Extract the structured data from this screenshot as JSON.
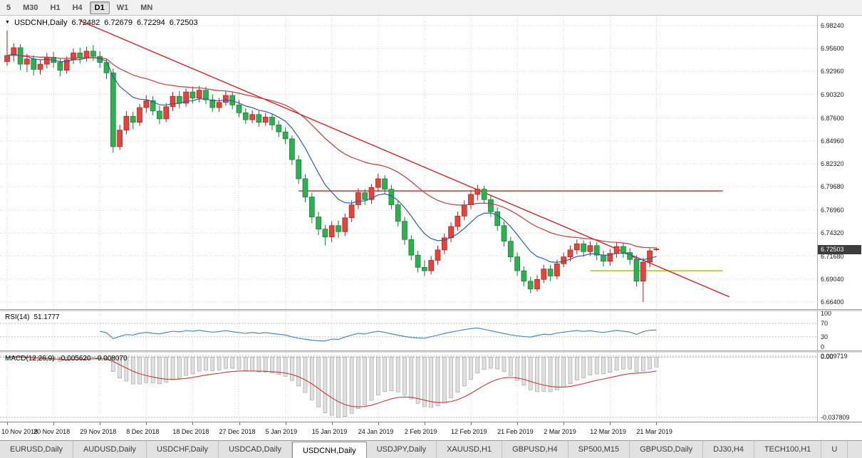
{
  "toolbar": {
    "periods": [
      {
        "label": "5",
        "active": false
      },
      {
        "label": "M30",
        "active": false
      },
      {
        "label": "H1",
        "active": false
      },
      {
        "label": "H4",
        "active": false
      },
      {
        "label": "D1",
        "active": true
      },
      {
        "label": "W1",
        "active": false
      },
      {
        "label": "MN",
        "active": false
      }
    ]
  },
  "main_chart": {
    "symbol_period": "USDCNH,Daily",
    "open": "6.72482",
    "high": "6.72679",
    "low": "6.72294",
    "close": "6.72503",
    "current_price": "6.72503",
    "price_axis_labels": [
      "6.98240",
      "6.95600",
      "6.92960",
      "6.90320",
      "6.87600",
      "6.84960",
      "6.82320",
      "6.79680",
      "6.76960",
      "6.74320",
      "6.71680",
      "6.69040",
      "6.66400"
    ]
  },
  "rsi_panel": {
    "name": "RSI(14)",
    "value": "51.1777",
    "axis_labels": [
      "100",
      "70",
      "30",
      "0"
    ],
    "levels": [
      70,
      30
    ],
    "range": [
      0,
      100
    ]
  },
  "macd_panel": {
    "name": "MACD(12,26,9)",
    "macd_value": "-0.005620",
    "signal_value": "-0.008070",
    "axis_labels": [
      "0.009719",
      "0.00",
      "-0.037809"
    ]
  },
  "date_axis": {
    "labels": [
      "10 Nov 2018",
      "20 Nov 2018",
      "29 Nov 2018",
      "8 Dec 2018",
      "18 Dec 2018",
      "27 Dec 2018",
      "5 Jan 2019",
      "15 Jan 2019",
      "24 Jan 2019",
      "2 Feb 2019",
      "12 Feb 2019",
      "21 Feb 2019",
      "2 Mar 2019",
      "12 Mar 2019",
      "21 Mar 2019"
    ],
    "tick_every": 7
  },
  "tabs": [
    {
      "label": "EURUSD,Daily",
      "active": false
    },
    {
      "label": "AUDUSD,Daily",
      "active": false
    },
    {
      "label": "USDCHF,Daily",
      "active": false
    },
    {
      "label": "USDCAD,Daily",
      "active": false
    },
    {
      "label": "USDCNH,Daily",
      "active": true
    },
    {
      "label": "USDJPY,Daily",
      "active": false
    },
    {
      "label": "XAUUSD,H1",
      "active": false
    },
    {
      "label": "GBPUSD,H4",
      "active": false
    },
    {
      "label": "SP500,M15",
      "active": false
    },
    {
      "label": "GBPUSD,Daily",
      "active": false
    },
    {
      "label": "DJ30,H4",
      "active": false
    },
    {
      "label": "TECH100,H1",
      "active": false
    },
    {
      "label": "U",
      "active": false
    }
  ],
  "colors": {
    "bull": "#e2443e",
    "bull_border": "#a8201c",
    "bear": "#2fae52",
    "bear_border": "#157a33",
    "ma_fast": "#2e5e9e",
    "ma_slow": "#c23b3b",
    "trendline": "#cc2222",
    "resistance_line": "#cc2222",
    "support_line": "#aacc00",
    "grid": "#d9d9d9",
    "rsi_line": "#3c7fb5",
    "macd_histogram": "#e0e0e0",
    "macd_histogram_border": "#9a9a9a",
    "macd_signal": "#c23b3b",
    "price_tag_bg": "#3d3d3d"
  },
  "chart_data": {
    "type": "candlestick",
    "symbol": "USDCNH",
    "timeframe": "Daily",
    "y_range": [
      6.664,
      6.9824
    ],
    "candles": [
      [
        6.941,
        6.977,
        6.936,
        6.948
      ],
      [
        6.948,
        6.962,
        6.941,
        6.957
      ],
      [
        6.957,
        6.961,
        6.931,
        6.938
      ],
      [
        6.938,
        6.95,
        6.929,
        6.944
      ],
      [
        6.944,
        6.948,
        6.925,
        6.932
      ],
      [
        6.932,
        6.943,
        6.926,
        6.938
      ],
      [
        6.938,
        6.951,
        6.933,
        6.946
      ],
      [
        6.946,
        6.952,
        6.934,
        6.94
      ],
      [
        6.94,
        6.945,
        6.924,
        6.931
      ],
      [
        6.931,
        6.947,
        6.927,
        6.943
      ],
      [
        6.943,
        6.956,
        6.938,
        6.951
      ],
      [
        6.951,
        6.957,
        6.939,
        6.945
      ],
      [
        6.945,
        6.958,
        6.941,
        6.953
      ],
      [
        6.953,
        6.96,
        6.942,
        6.947
      ],
      [
        6.947,
        6.953,
        6.934,
        6.94
      ],
      [
        6.94,
        6.944,
        6.921,
        6.928
      ],
      [
        6.928,
        6.933,
        6.836,
        6.843
      ],
      [
        6.843,
        6.868,
        6.839,
        6.862
      ],
      [
        6.862,
        6.884,
        6.857,
        6.878
      ],
      [
        6.878,
        6.883,
        6.863,
        6.871
      ],
      [
        6.871,
        6.892,
        6.867,
        6.888
      ],
      [
        6.888,
        6.902,
        6.882,
        6.896
      ],
      [
        6.896,
        6.901,
        6.879,
        6.884
      ],
      [
        6.884,
        6.89,
        6.869,
        6.875
      ],
      [
        6.875,
        6.893,
        6.871,
        6.889
      ],
      [
        6.889,
        6.906,
        6.884,
        6.901
      ],
      [
        6.901,
        6.907,
        6.887,
        6.893
      ],
      [
        6.893,
        6.91,
        6.889,
        6.906
      ],
      [
        6.906,
        6.912,
        6.893,
        6.899
      ],
      [
        6.899,
        6.913,
        6.894,
        6.908
      ],
      [
        6.908,
        6.912,
        6.892,
        6.897
      ],
      [
        6.897,
        6.903,
        6.883,
        6.888
      ],
      [
        6.888,
        6.899,
        6.883,
        6.894
      ],
      [
        6.894,
        6.907,
        6.89,
        6.902
      ],
      [
        6.902,
        6.906,
        6.886,
        6.891
      ],
      [
        6.891,
        6.897,
        6.877,
        6.882
      ],
      [
        6.882,
        6.887,
        6.869,
        6.874
      ],
      [
        6.874,
        6.885,
        6.87,
        6.88
      ],
      [
        6.88,
        6.884,
        6.866,
        6.871
      ],
      [
        6.871,
        6.882,
        6.867,
        6.877
      ],
      [
        6.877,
        6.881,
        6.862,
        6.868
      ],
      [
        6.868,
        6.873,
        6.854,
        6.86
      ],
      [
        6.86,
        6.865,
        6.846,
        6.852
      ],
      [
        6.852,
        6.856,
        6.822,
        6.828
      ],
      [
        6.828,
        6.833,
        6.8,
        6.806
      ],
      [
        6.806,
        6.811,
        6.779,
        6.785
      ],
      [
        6.785,
        6.79,
        6.755,
        6.762
      ],
      [
        6.762,
        6.768,
        6.741,
        6.748
      ],
      [
        6.748,
        6.753,
        6.729,
        6.739
      ],
      [
        6.739,
        6.757,
        6.733,
        6.752
      ],
      [
        6.752,
        6.758,
        6.738,
        6.745
      ],
      [
        6.745,
        6.766,
        6.74,
        6.761
      ],
      [
        6.761,
        6.781,
        6.756,
        6.776
      ],
      [
        6.776,
        6.795,
        6.771,
        6.79
      ],
      [
        6.79,
        6.794,
        6.776,
        6.782
      ],
      [
        6.782,
        6.8,
        6.777,
        6.796
      ],
      [
        6.796,
        6.812,
        6.791,
        6.806
      ],
      [
        6.806,
        6.81,
        6.789,
        6.794
      ],
      [
        6.794,
        6.799,
        6.771,
        6.776
      ],
      [
        6.776,
        6.781,
        6.751,
        6.757
      ],
      [
        6.757,
        6.762,
        6.73,
        6.736
      ],
      [
        6.736,
        6.741,
        6.712,
        6.718
      ],
      [
        6.718,
        6.723,
        6.698,
        6.704
      ],
      [
        6.704,
        6.712,
        6.694,
        6.7
      ],
      [
        6.7,
        6.717,
        6.696,
        6.712
      ],
      [
        6.712,
        6.729,
        6.707,
        6.724
      ],
      [
        6.724,
        6.743,
        6.719,
        6.738
      ],
      [
        6.738,
        6.756,
        6.733,
        6.751
      ],
      [
        6.751,
        6.768,
        6.746,
        6.763
      ],
      [
        6.763,
        6.781,
        6.758,
        6.776
      ],
      [
        6.776,
        6.793,
        6.771,
        6.788
      ],
      [
        6.788,
        6.799,
        6.781,
        6.794
      ],
      [
        6.794,
        6.798,
        6.777,
        6.782
      ],
      [
        6.782,
        6.787,
        6.762,
        6.768
      ],
      [
        6.768,
        6.773,
        6.746,
        6.752
      ],
      [
        6.752,
        6.757,
        6.728,
        6.734
      ],
      [
        6.734,
        6.739,
        6.71,
        6.716
      ],
      [
        6.716,
        6.721,
        6.694,
        6.7
      ],
      [
        6.7,
        6.705,
        6.682,
        6.688
      ],
      [
        6.688,
        6.693,
        6.674,
        6.679
      ],
      [
        6.679,
        6.695,
        6.676,
        6.69
      ],
      [
        6.69,
        6.707,
        6.686,
        6.702
      ],
      [
        6.702,
        6.707,
        6.688,
        6.694
      ],
      [
        6.694,
        6.713,
        6.69,
        6.708
      ],
      [
        6.708,
        6.721,
        6.704,
        6.716
      ],
      [
        6.716,
        6.729,
        6.711,
        6.724
      ],
      [
        6.724,
        6.736,
        6.719,
        6.731
      ],
      [
        6.731,
        6.735,
        6.716,
        6.722
      ],
      [
        6.722,
        6.734,
        6.717,
        6.729
      ],
      [
        6.729,
        6.733,
        6.712,
        6.718
      ],
      [
        6.718,
        6.723,
        6.705,
        6.711
      ],
      [
        6.711,
        6.725,
        6.706,
        6.72
      ],
      [
        6.72,
        6.733,
        6.715,
        6.728
      ],
      [
        6.728,
        6.732,
        6.715,
        6.721
      ],
      [
        6.721,
        6.726,
        6.707,
        6.713
      ],
      [
        6.713,
        6.718,
        6.682,
        6.688
      ],
      [
        6.688,
        6.715,
        6.664,
        6.71
      ],
      [
        6.71,
        6.726,
        6.704,
        6.723
      ],
      [
        6.72482,
        6.72679,
        6.72294,
        6.72503
      ]
    ],
    "overlays": {
      "ma_fast": {
        "type": "ema",
        "period": 10
      },
      "ma_slow": {
        "type": "ema",
        "period": 30
      },
      "trendline": {
        "from_index": 11,
        "from_price": 6.988,
        "to_index": 109,
        "to_price": 6.67
      },
      "hlines": [
        {
          "role": "resistance",
          "price": 6.792,
          "from_index": 44,
          "to_index": 108
        },
        {
          "role": "support",
          "price": 6.7,
          "from_index": 88,
          "to_index": 108
        }
      ]
    },
    "indicators": {
      "rsi": {
        "period": 14,
        "current": 51.1777,
        "levels": [
          70,
          30
        ]
      },
      "macd": {
        "fast": 12,
        "slow": 26,
        "signal": 9,
        "current_macd": -0.00562,
        "current_signal": -0.00807
      }
    }
  }
}
